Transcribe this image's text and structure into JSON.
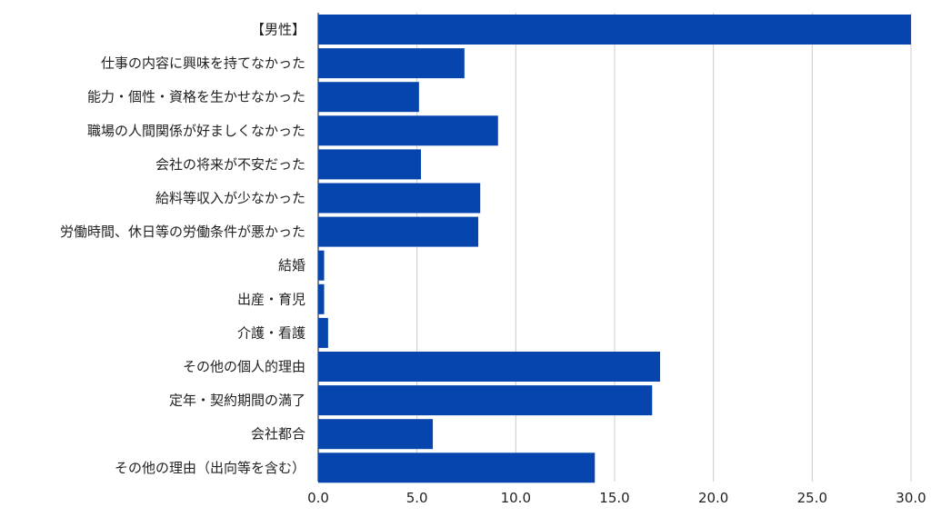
{
  "chart_data": {
    "type": "bar",
    "orientation": "horizontal",
    "title": "",
    "xlabel": "",
    "ylabel": "",
    "xlim": [
      0,
      30
    ],
    "x_ticks": [
      "0.0",
      "5.0",
      "10.0",
      "15.0",
      "20.0",
      "25.0",
      "30.0"
    ],
    "grid": "vertical gridlines",
    "legend": "none",
    "bar_color": "#0645AD",
    "categories": [
      "【男性】",
      "仕事の内容に興味を持てなかった",
      "能力・個性・資格を生かせなかった",
      "職場の人間関係が好ましくなかった",
      "会社の将来が不安だった",
      "給料等収入が少なかった",
      "労働時間、休日等の労働条件が悪かった",
      "結婚",
      "出産・育児",
      "介護・看護",
      "その他の個人的理由",
      "定年・契約期間の満了",
      "会社都合",
      "その他の理由（出向等を含む）"
    ],
    "values": [
      30.0,
      7.4,
      5.1,
      9.1,
      5.2,
      8.2,
      8.1,
      0.3,
      0.3,
      0.5,
      17.3,
      16.9,
      5.8,
      14.0
    ]
  }
}
